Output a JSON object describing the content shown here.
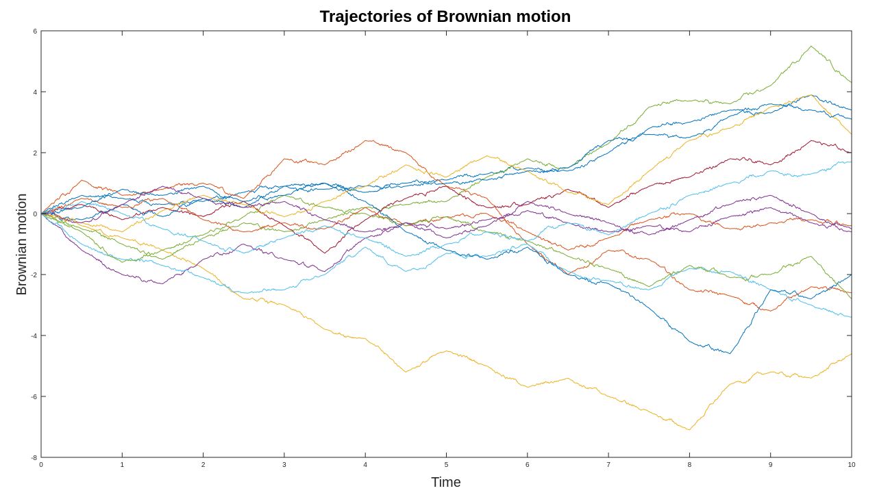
{
  "chart_data": {
    "type": "line",
    "title": "Trajectories of Brownian motion",
    "xlabel": "Time",
    "ylabel": "Brownian motion",
    "xlim": [
      0,
      10
    ],
    "ylim": [
      -8,
      6
    ],
    "xticks": [
      "0",
      "1",
      "2",
      "3",
      "4",
      "5",
      "6",
      "7",
      "8",
      "9",
      "10"
    ],
    "yticks": [
      "-8",
      "-6",
      "-4",
      "-2",
      "0",
      "2",
      "4",
      "6"
    ],
    "grid": false,
    "legend": "none",
    "x": [
      0,
      0.5,
      1,
      1.5,
      2,
      2.5,
      3,
      3.5,
      4,
      4.5,
      5,
      5.5,
      6,
      6.5,
      7,
      7.5,
      8,
      8.5,
      9,
      9.5,
      10
    ],
    "series": [
      {
        "color": "#0072BD",
        "values": [
          0,
          0.6,
          0.5,
          0.3,
          0.4,
          0.7,
          0.9,
          0.8,
          0.9,
          1.0,
          1.1,
          1.3,
          1.5,
          1.4,
          2.0,
          2.8,
          3.0,
          3.4,
          3.3,
          3.9,
          3.4
        ]
      },
      {
        "color": "#D95319",
        "values": [
          0,
          1.1,
          0.6,
          0.8,
          1.0,
          0.5,
          1.8,
          1.6,
          2.4,
          2.0,
          0.9,
          0.5,
          -1.0,
          -2.0,
          -1.2,
          -1.5,
          -2.5,
          -2.7,
          -3.2,
          -2.4,
          -2.6
        ]
      },
      {
        "color": "#EDB120",
        "values": [
          0,
          -0.4,
          -0.8,
          -1.2,
          -1.8,
          -2.8,
          -3.0,
          -3.8,
          -4.1,
          -5.2,
          -4.5,
          -5.0,
          -5.7,
          -5.4,
          -6.0,
          -6.5,
          -7.1,
          -5.6,
          -5.2,
          -5.4,
          -4.6
        ]
      },
      {
        "color": "#7E2F8E",
        "values": [
          0,
          -1.2,
          -2.0,
          -2.3,
          -1.5,
          -1.0,
          -1.5,
          -1.9,
          -0.8,
          -0.3,
          -0.5,
          -0.2,
          0.1,
          -0.3,
          -0.6,
          -0.4,
          -0.6,
          -0.1,
          0.2,
          -0.3,
          -0.6
        ]
      },
      {
        "color": "#77AC30",
        "values": [
          0,
          -0.5,
          -1.0,
          -1.5,
          -0.8,
          -0.3,
          -0.6,
          -0.2,
          0.2,
          0.3,
          0.4,
          1.2,
          1.8,
          1.5,
          2.3,
          3.5,
          3.7,
          3.6,
          4.2,
          5.5,
          4.3
        ]
      },
      {
        "color": "#4DBEEE",
        "values": [
          0,
          -1.0,
          -1.5,
          -1.7,
          -2.1,
          -2.6,
          -2.5,
          -2.0,
          -1.1,
          -1.9,
          -1.3,
          -1.4,
          -1.0,
          -1.9,
          -2.2,
          -2.5,
          -1.8,
          -1.9,
          -2.5,
          -3.0,
          -3.4
        ]
      },
      {
        "color": "#A2142F",
        "values": [
          0,
          0.3,
          -0.2,
          0.2,
          -0.1,
          0.4,
          -0.4,
          -1.3,
          -0.2,
          0.5,
          0.9,
          0.2,
          0.3,
          0.8,
          0.2,
          0.9,
          1.2,
          1.8,
          1.6,
          2.4,
          2.0
        ]
      },
      {
        "color": "#0072BD",
        "values": [
          0,
          -0.2,
          0.3,
          -0.1,
          0.5,
          0.2,
          0.9,
          1.0,
          0.4,
          -0.6,
          -1.2,
          -1.5,
          -1.1,
          -2.0,
          -2.3,
          -3.1,
          -4.2,
          -4.6,
          -2.5,
          -2.8,
          -2.0
        ]
      },
      {
        "color": "#D95319",
        "values": [
          0,
          0.5,
          0.2,
          0.5,
          -0.2,
          -0.6,
          -0.3,
          -0.5,
          0.2,
          -0.4,
          -0.1,
          0.0,
          -0.6,
          -1.2,
          -0.8,
          -0.2,
          0.0,
          -0.5,
          -0.3,
          -0.2,
          -0.4
        ]
      },
      {
        "color": "#EDB120",
        "values": [
          0,
          -0.3,
          -0.6,
          0.1,
          0.6,
          0.3,
          -0.1,
          0.4,
          0.9,
          1.6,
          1.2,
          1.9,
          1.4,
          0.7,
          0.3,
          1.4,
          2.4,
          2.8,
          3.5,
          3.9,
          2.6
        ]
      },
      {
        "color": "#77AC30",
        "values": [
          0,
          -0.6,
          -1.6,
          -1.2,
          -0.7,
          -0.1,
          0.6,
          0.2,
          0.0,
          -0.4,
          -0.1,
          -0.6,
          -0.9,
          -1.4,
          -1.8,
          -2.4,
          -1.7,
          -2.1,
          -2.0,
          -1.4,
          -2.8
        ]
      },
      {
        "color": "#4DBEEE",
        "values": [
          0,
          0.4,
          0.0,
          -0.5,
          -0.9,
          -1.3,
          -0.8,
          -0.4,
          -0.8,
          -1.4,
          -1.0,
          -0.6,
          -0.9,
          -0.3,
          -0.7,
          0.0,
          0.6,
          1.0,
          1.4,
          1.3,
          1.7
        ]
      },
      {
        "color": "#0072BD",
        "values": [
          0,
          0.2,
          0.8,
          0.6,
          0.9,
          0.4,
          0.6,
          1.0,
          0.7,
          0.9,
          1.0,
          1.1,
          1.4,
          1.5,
          2.4,
          2.6,
          2.5,
          3.2,
          3.6,
          3.4,
          3.1
        ]
      },
      {
        "color": "#7E2F8E",
        "values": [
          0,
          -0.3,
          0.3,
          0.9,
          0.5,
          0.2,
          0.4,
          -0.2,
          -0.6,
          -0.3,
          -0.8,
          -0.4,
          0.4,
          0.0,
          -0.3,
          -0.7,
          -0.2,
          0.3,
          0.6,
          0.0,
          -0.5
        ]
      }
    ]
  }
}
